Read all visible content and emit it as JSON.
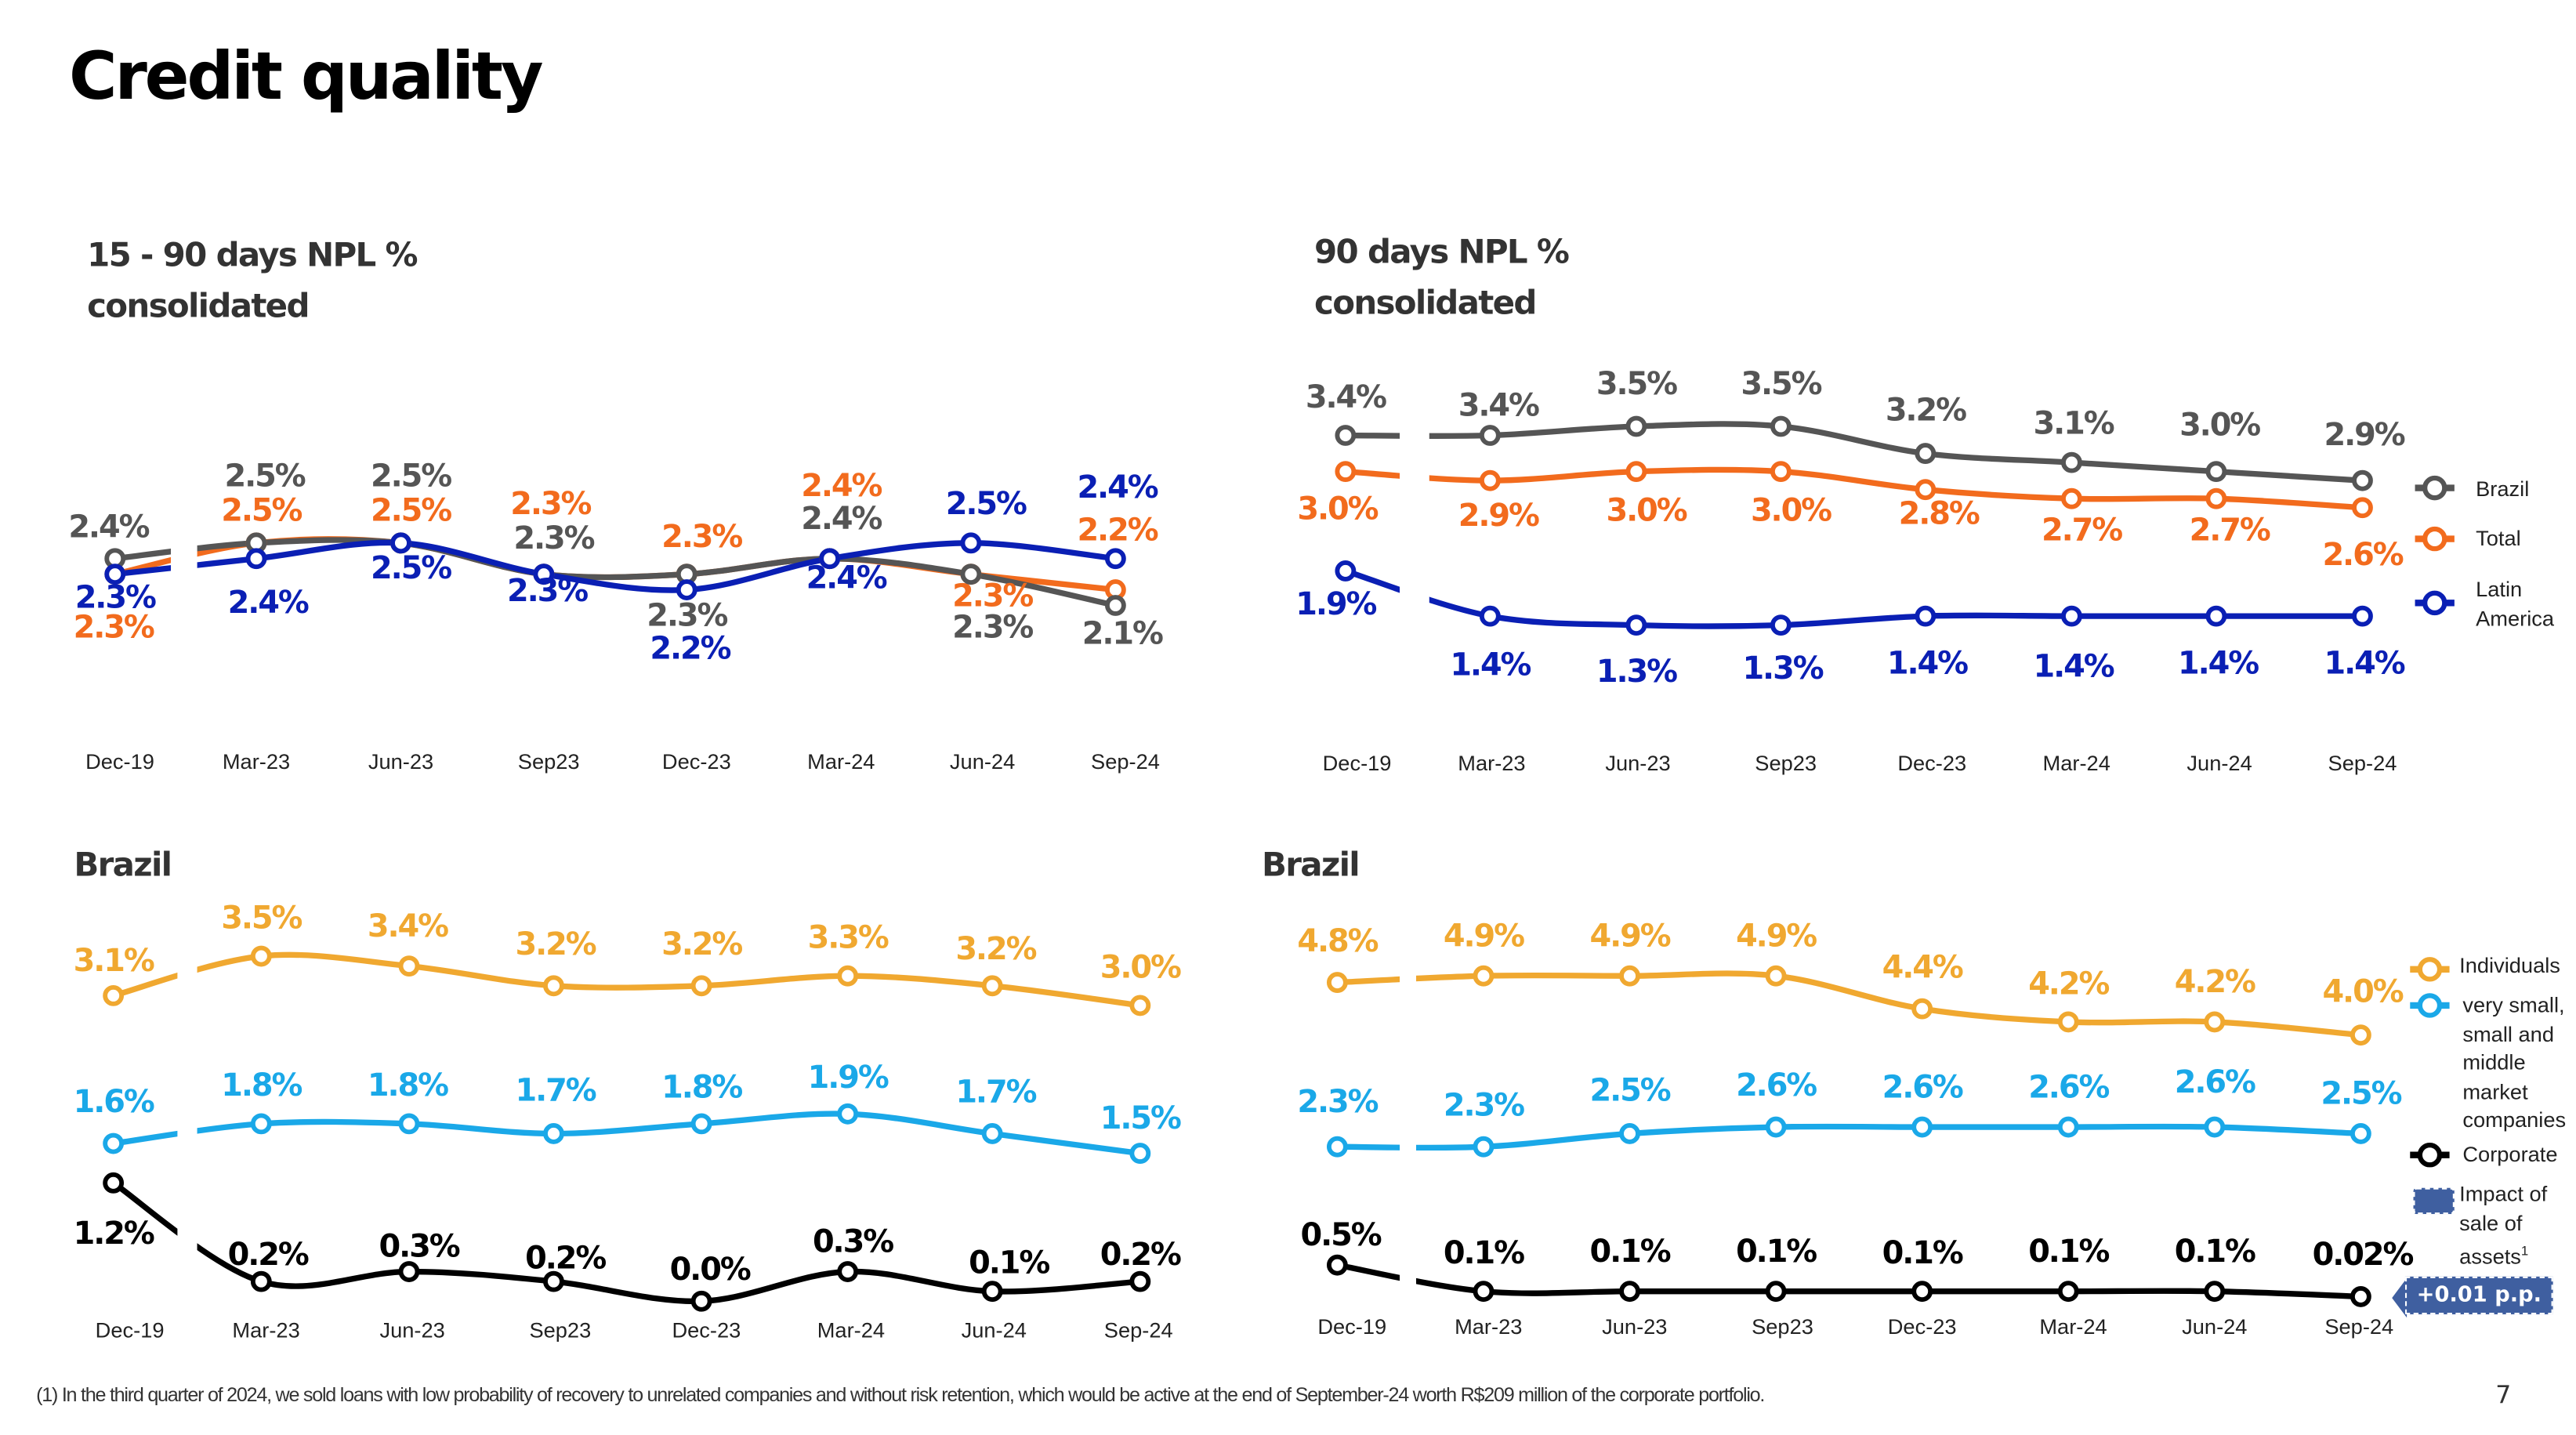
{
  "page": {
    "title": "Credit quality",
    "page_number": "7",
    "footnote": "(1) In the third quarter of 2024, we sold loans with low probability of recovery to unrelated companies and without risk retention, which would be active at the end of September-24 worth R$209 million of the corporate portfolio."
  },
  "chart_data": [
    {
      "type": "line",
      "title": "15 - 90 days NPL %",
      "subtitle": "consolidated",
      "categories": [
        "Dec-19",
        "Mar-23",
        "Jun-23",
        "Sep23",
        "Dec-23",
        "Mar-24",
        "Jun-24",
        "Sep-24"
      ],
      "legend": "shared-with-right-chart",
      "series": [
        {
          "name": "Total",
          "color": "#f26b1d",
          "values": [
            2.3,
            2.5,
            2.5,
            2.3,
            2.3,
            2.4,
            2.3,
            2.2
          ],
          "labels": [
            "2.3%",
            "2.5%",
            "2.5%",
            "2.3%",
            "2.3%",
            "2.4%",
            "2.3%",
            "2.2%"
          ]
        },
        {
          "name": "Brazil",
          "color": "#555555",
          "values": [
            2.4,
            2.5,
            2.5,
            2.3,
            2.3,
            2.4,
            2.3,
            2.1
          ],
          "labels": [
            "2.4%",
            "2.5%",
            "2.5%",
            "2.3%",
            "2.3%",
            "2.4%",
            "2.3%",
            "2.1%"
          ]
        },
        {
          "name": "Latin America",
          "color": "#0a1fb4",
          "values": [
            2.3,
            2.4,
            2.5,
            2.3,
            2.2,
            2.4,
            2.5,
            2.4
          ],
          "labels": [
            "2.3%",
            "2.4%",
            "2.5%",
            "2.3%",
            "2.2%",
            "2.4%",
            "2.5%",
            "2.4%"
          ]
        }
      ]
    },
    {
      "type": "line",
      "title": "90 days NPL %",
      "subtitle": "consolidated",
      "categories": [
        "Dec-19",
        "Mar-23",
        "Jun-23",
        "Sep23",
        "Dec-23",
        "Mar-24",
        "Jun-24",
        "Sep-24"
      ],
      "legend": "right",
      "series": [
        {
          "name": "Brazil",
          "color": "#555555",
          "values": [
            3.4,
            3.4,
            3.5,
            3.5,
            3.2,
            3.1,
            3.0,
            2.9
          ],
          "labels": [
            "3.4%",
            "3.4%",
            "3.5%",
            "3.5%",
            "3.2%",
            "3.1%",
            "3.0%",
            "2.9%"
          ]
        },
        {
          "name": "Total",
          "color": "#f26b1d",
          "values": [
            3.0,
            2.9,
            3.0,
            3.0,
            2.8,
            2.7,
            2.7,
            2.6
          ],
          "labels": [
            "3.0%",
            "2.9%",
            "3.0%",
            "3.0%",
            "2.8%",
            "2.7%",
            "2.7%",
            "2.6%"
          ]
        },
        {
          "name": "Latin America",
          "color": "#0a1fb4",
          "values": [
            1.9,
            1.4,
            1.3,
            1.3,
            1.4,
            1.4,
            1.4,
            1.4
          ],
          "labels": [
            "1.9%",
            "1.4%",
            "1.3%",
            "1.3%",
            "1.4%",
            "1.4%",
            "1.4%",
            "1.4%"
          ]
        }
      ]
    },
    {
      "type": "line",
      "title": "Brazil",
      "categories": [
        "Dec-19",
        "Mar-23",
        "Jun-23",
        "Sep23",
        "Dec-23",
        "Mar-24",
        "Jun-24",
        "Sep-24"
      ],
      "legend": "shared-with-right-chart",
      "series": [
        {
          "name": "Individuals",
          "color": "#f0a830",
          "values": [
            3.1,
            3.5,
            3.4,
            3.2,
            3.2,
            3.3,
            3.2,
            3.0
          ],
          "labels": [
            "3.1%",
            "3.5%",
            "3.4%",
            "3.2%",
            "3.2%",
            "3.3%",
            "3.2%",
            "3.0%"
          ]
        },
        {
          "name": "very small, small and middle market companies",
          "color": "#1aa8e8",
          "values": [
            1.6,
            1.8,
            1.8,
            1.7,
            1.8,
            1.9,
            1.7,
            1.5
          ],
          "labels": [
            "1.6%",
            "1.8%",
            "1.8%",
            "1.7%",
            "1.8%",
            "1.9%",
            "1.7%",
            "1.5%"
          ]
        },
        {
          "name": "Corporate",
          "color": "#000000",
          "values": [
            1.2,
            0.2,
            0.3,
            0.2,
            0.0,
            0.3,
            0.1,
            0.2
          ],
          "labels": [
            "1.2%",
            "0.2%",
            "0.3%",
            "0.2%",
            "0.0%",
            "0.3%",
            "0.1%",
            "0.2%"
          ]
        }
      ]
    },
    {
      "type": "line",
      "title": "Brazil",
      "categories": [
        "Dec-19",
        "Mar-23",
        "Jun-23",
        "Sep23",
        "Dec-23",
        "Mar-24",
        "Jun-24",
        "Sep-24"
      ],
      "legend": "right",
      "series": [
        {
          "name": "Individuals",
          "color": "#f0a830",
          "values": [
            4.8,
            4.9,
            4.9,
            4.9,
            4.4,
            4.2,
            4.2,
            4.0
          ],
          "labels": [
            "4.8%",
            "4.9%",
            "4.9%",
            "4.9%",
            "4.4%",
            "4.2%",
            "4.2%",
            "4.0%"
          ]
        },
        {
          "name": "very small, small and middle market companies",
          "color": "#1aa8e8",
          "values": [
            2.3,
            2.3,
            2.5,
            2.6,
            2.6,
            2.6,
            2.6,
            2.5
          ],
          "labels": [
            "2.3%",
            "2.3%",
            "2.5%",
            "2.6%",
            "2.6%",
            "2.6%",
            "2.6%",
            "2.5%"
          ]
        },
        {
          "name": "Corporate",
          "color": "#000000",
          "values": [
            0.5,
            0.1,
            0.1,
            0.1,
            0.1,
            0.1,
            0.1,
            0.02
          ],
          "labels": [
            "0.5%",
            "0.1%",
            "0.1%",
            "0.1%",
            "0.1%",
            "0.1%",
            "0.1%",
            "0.02%"
          ]
        }
      ],
      "annotation": {
        "legend_label": "Impact of sale of assets",
        "footnote_mark": "1",
        "badge": "+0.01 p.p.",
        "color": "#3f5fa0"
      }
    }
  ],
  "legend_lines": {
    "very_small_lines": [
      "very small,",
      "small and",
      "middle",
      "market",
      "companies"
    ],
    "impact_lines": [
      "Impact of",
      "sale of",
      "assets"
    ]
  }
}
